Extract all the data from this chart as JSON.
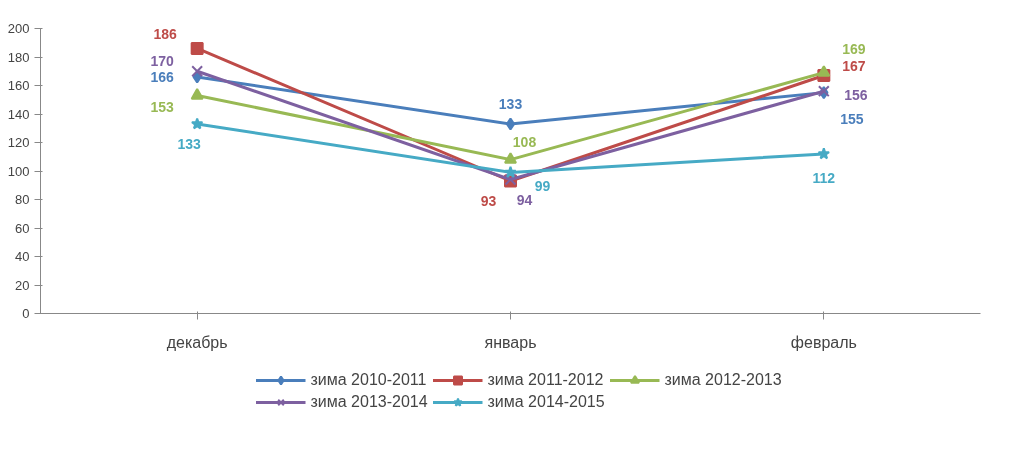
{
  "chart_data": {
    "type": "line",
    "categories": [
      "декабрь",
      "январь",
      "февраль"
    ],
    "ylim": [
      0,
      200
    ],
    "yticks": [
      0,
      20,
      40,
      60,
      80,
      100,
      120,
      140,
      160,
      180,
      200
    ],
    "grid": false,
    "legend": "bottom",
    "data_labels": true,
    "series": [
      {
        "name": "зима 2010-2011",
        "color": "#4a7ebb",
        "marker": "diamond",
        "values": [
          166,
          133,
          155
        ]
      },
      {
        "name": "зима 2011-2012",
        "color": "#be4b48",
        "marker": "square",
        "values": [
          186,
          93,
          167
        ]
      },
      {
        "name": "зима 2012-2013",
        "color": "#98b954",
        "marker": "triangle",
        "values": [
          153,
          108,
          169
        ]
      },
      {
        "name": "зима 2013-2014",
        "color": "#7d60a0",
        "marker": "cross",
        "values": [
          170,
          94,
          156
        ]
      },
      {
        "name": "зима 2014-2015",
        "color": "#46aac5",
        "marker": "star",
        "values": [
          133,
          99,
          112
        ]
      }
    ]
  }
}
